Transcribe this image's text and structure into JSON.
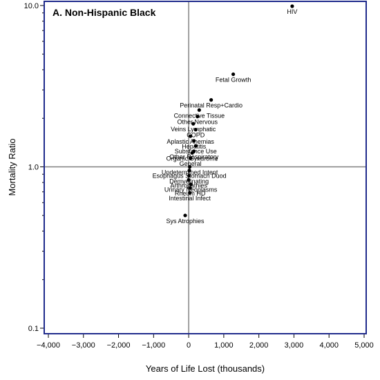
{
  "chart_data": {
    "type": "scatter",
    "title": "A. Non-Hispanic Black",
    "xlabel": "Years of Life Lost (thousands)",
    "ylabel": "Mortality Ratio",
    "xlim": [
      -4000,
      5000
    ],
    "ylim": [
      0.1,
      10.0
    ],
    "yscale": "log",
    "x_ticks": [
      -4000,
      -3000,
      -2000,
      -1000,
      0,
      1000,
      2000,
      3000,
      4000,
      5000
    ],
    "x_tick_labels": [
      "−4,000",
      "−3,000",
      "−2,000",
      "−1,000",
      "0",
      "1,000",
      "2,000",
      "3,000",
      "4,000",
      "5,000"
    ],
    "y_ticks": [
      0.1,
      1.0,
      10.0
    ],
    "y_tick_labels": [
      "0.1",
      "1.0",
      "10.0"
    ],
    "reference_lines": {
      "x": 0,
      "y": 1.0
    },
    "grid": false,
    "colors": {
      "frame": "#1f2a8c",
      "points": "#000000",
      "reference": "#808080"
    },
    "points": [
      {
        "label": "HIV",
        "x": 2950,
        "y": 9.9
      },
      {
        "label": "Fetal Growth",
        "x": 1270,
        "y": 3.75
      },
      {
        "label": "Perinatal Resp+Cardio",
        "x": 640,
        "y": 2.6
      },
      {
        "label": "Connective Tissue",
        "x": 300,
        "y": 2.25
      },
      {
        "label": "Other Nervous",
        "x": 250,
        "y": 2.05
      },
      {
        "label": "Veins Lymphatic",
        "x": 130,
        "y": 1.85
      },
      {
        "label": "COPD",
        "x": 200,
        "y": 1.7
      },
      {
        "label": "Aplastic Anemias",
        "x": 50,
        "y": 1.55
      },
      {
        "label": "Hepatitis",
        "x": 150,
        "y": 1.45
      },
      {
        "label": "Substance Use",
        "x": 200,
        "y": 1.35
      },
      {
        "label": "Other Respiratory",
        "x": 150,
        "y": 1.25
      },
      {
        "label": "Organic Syndrome",
        "x": 100,
        "y": 1.22
      },
      {
        "label": "General",
        "x": 50,
        "y": 1.13
      },
      {
        "label": "Undetermined Intent",
        "x": 30,
        "y": 1.0
      },
      {
        "label": "Esophagus Stomach Duod",
        "x": 20,
        "y": 0.95
      },
      {
        "label": "Demyelinating",
        "x": 10,
        "y": 0.88
      },
      {
        "label": "Arthropathies",
        "x": 0,
        "y": 0.83
      },
      {
        "label": "Urinary Neoplasms",
        "x": 60,
        "y": 0.78
      },
      {
        "label": "Rheum HD",
        "x": 40,
        "y": 0.74
      },
      {
        "label": "Intestinal Infect",
        "x": 30,
        "y": 0.69
      },
      {
        "label": "Sys Atrophies",
        "x": -100,
        "y": 0.5
      }
    ]
  }
}
